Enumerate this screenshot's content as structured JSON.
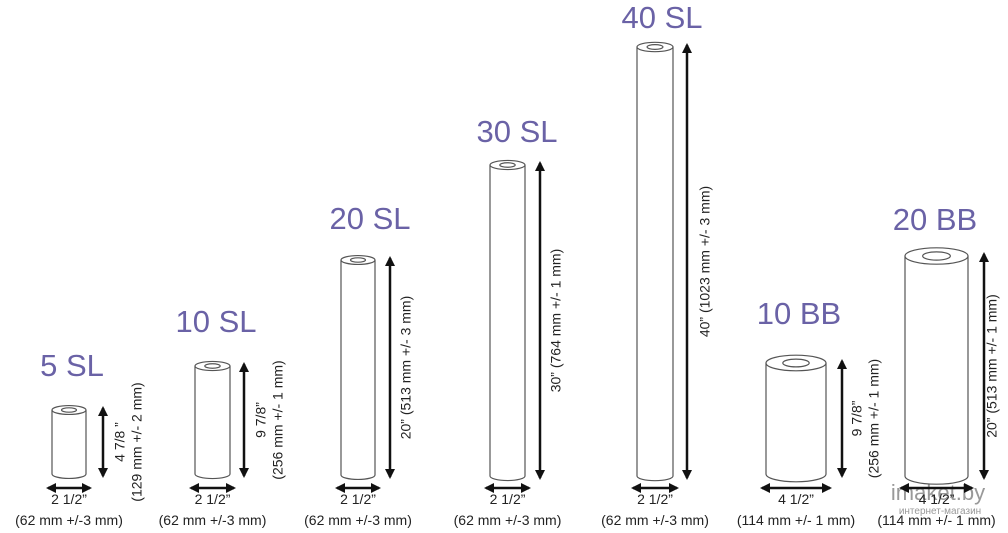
{
  "items": [
    {
      "name": "5 SL",
      "height_label": [
        "4 7/8 ”",
        "(129 mm +/- 2 mm)"
      ],
      "width_label": "2 1/2”",
      "width_mm": "(62 mm +/-3 mm)"
    },
    {
      "name": "10 SL",
      "height_label": [
        "9 7/8”",
        "(256 mm +/- 1 mm)"
      ],
      "width_label": "2 1/2”",
      "width_mm": "(62 mm +/-3 mm)"
    },
    {
      "name": "20 SL",
      "height_label": [
        "20” (513 mm +/- 3 mm)"
      ],
      "width_label": "2 1/2”",
      "width_mm": "(62 mm +/-3 mm)"
    },
    {
      "name": "30 SL",
      "height_label": [
        "30” (764 mm +/- 1 mm)"
      ],
      "width_label": "2 1/2”",
      "width_mm": "(62 mm +/-3 mm)"
    },
    {
      "name": "40 SL",
      "height_label": [
        "40” (1023 mm +/- 3 mm)"
      ],
      "width_label": "2 1/2”",
      "width_mm": "(62 mm +/-3 mm)"
    },
    {
      "name": "10 BB",
      "height_label": [
        "9 7/8”",
        "(256 mm +/- 1 mm)"
      ],
      "width_label": "4 1/2”",
      "width_mm": "(114 mm +/- 1 mm)"
    },
    {
      "name": "20 BB",
      "height_label": [
        "20” (513 mm +/- 1 mm)"
      ],
      "width_label": "4 1/2”",
      "width_mm": "(114 mm +/- 1 mm)"
    }
  ],
  "watermark": {
    "brand": "imaket.by",
    "tagline": "интернет-магазин"
  }
}
